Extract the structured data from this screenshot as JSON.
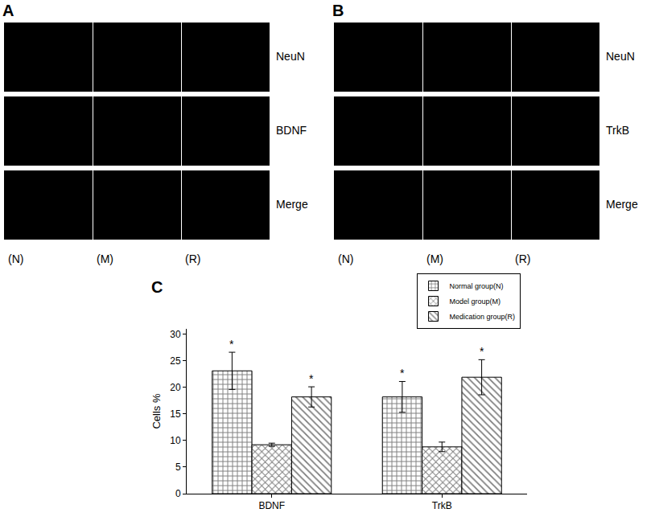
{
  "panels": [
    {
      "label": "A",
      "rows": [
        "NeuN",
        "BDNF",
        "Merge"
      ],
      "columns": [
        "(N)",
        "(M)",
        "(R)"
      ]
    },
    {
      "label": "B",
      "rows": [
        "NeuN",
        "TrkB",
        "Merge"
      ],
      "columns": [
        "(N)",
        "(M)",
        "(R)"
      ]
    }
  ],
  "chart_data": {
    "panel_label": "C",
    "type": "bar",
    "categories": [
      "BDNF",
      "TrkB"
    ],
    "y_label": "Cells %",
    "ylim": [
      0,
      31
    ],
    "yticks": [
      0,
      5,
      10,
      15,
      20,
      25,
      30
    ],
    "grid": false,
    "legend": "top right",
    "series": [
      {
        "name": "Normal group(N)",
        "color": "#000000",
        "marker": "grid",
        "values": [
          23.1,
          18.2
        ],
        "errors": [
          3.5,
          2.9
        ]
      },
      {
        "name": "Model group(M)",
        "color": "#000000",
        "marker": "cross",
        "values": [
          9.2,
          8.8
        ],
        "errors": [
          0.3,
          0.9
        ]
      },
      {
        "name": "Medication group(R)",
        "color": "#000000",
        "marker": "hatch",
        "values": [
          18.2,
          21.9
        ],
        "errors": [
          1.9,
          3.3
        ]
      }
    ],
    "annotations": [
      {
        "text": "*",
        "category": "BDNF",
        "series": "Normal group(N)"
      },
      {
        "text": "*",
        "category": "BDNF",
        "series": "Medication group(R)"
      },
      {
        "text": "*",
        "category": "TrkB",
        "series": "Normal group(N)"
      },
      {
        "text": "*",
        "category": "TrkB",
        "series": "Medication group(R)"
      }
    ]
  }
}
